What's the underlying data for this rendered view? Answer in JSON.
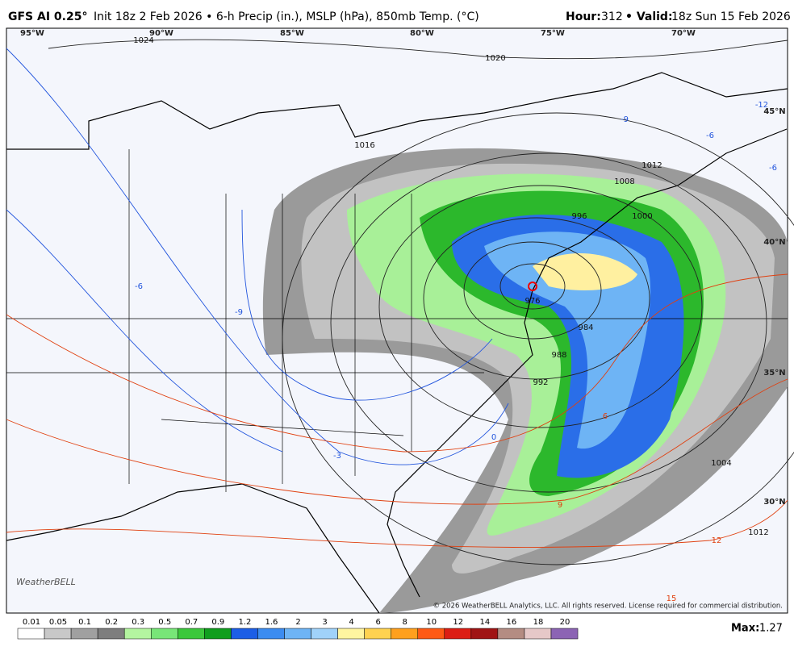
{
  "header": {
    "model": "GFS AI 0.25°",
    "description": "Init 18z 2 Feb 2026 • 6-h Precip (in.), MSLP (hPa), 850mb Temp. (°C)",
    "hour_label": "Hour:",
    "hour": "312",
    "valid_label": "• Valid:",
    "valid": "18z Sun 15 Feb 2026"
  },
  "map": {
    "longitudes": [
      "95°W",
      "90°W",
      "85°W",
      "80°W",
      "75°W",
      "70°W"
    ],
    "latitudes": [
      "45°N",
      "40°N",
      "35°N",
      "30°N"
    ],
    "isobar_labels": [
      "1024",
      "1020",
      "1016",
      "1012",
      "1008",
      "1000",
      "996",
      "976",
      "984",
      "988",
      "992",
      "1004",
      "1012"
    ],
    "temperature_labels": [
      "-12",
      "-9",
      "-6",
      "-6",
      "-9",
      "-6",
      "-3",
      "0",
      "6",
      "9",
      "12",
      "15"
    ],
    "logo": "WeatherBELL",
    "copyright": "© 2026 WeatherBELL Analytics, LLC. All rights reserved. License required for commercial distribution."
  },
  "legend": {
    "items": [
      {
        "label": "0.01",
        "color": "#ffffff"
      },
      {
        "label": "0.05",
        "color": "#c8c8c8"
      },
      {
        "label": "0.1",
        "color": "#a0a0a0"
      },
      {
        "label": "0.2",
        "color": "#7e7e7e"
      },
      {
        "label": "0.3",
        "color": "#b4f5a0"
      },
      {
        "label": "0.5",
        "color": "#78e678"
      },
      {
        "label": "0.7",
        "color": "#3cc83c"
      },
      {
        "label": "0.9",
        "color": "#109e1e"
      },
      {
        "label": "1.2",
        "color": "#1c5ee6"
      },
      {
        "label": "1.6",
        "color": "#3c8cf0"
      },
      {
        "label": "2",
        "color": "#6eb4f5"
      },
      {
        "label": "3",
        "color": "#a0d2fa"
      },
      {
        "label": "4",
        "color": "#fff5a0"
      },
      {
        "label": "6",
        "color": "#ffd250"
      },
      {
        "label": "8",
        "color": "#ffa01e"
      },
      {
        "label": "10",
        "color": "#ff5a14"
      },
      {
        "label": "12",
        "color": "#dc1e14"
      },
      {
        "label": "14",
        "color": "#a01414"
      },
      {
        "label": "16",
        "color": "#b48c82"
      },
      {
        "label": "18",
        "color": "#e6c8c8"
      },
      {
        "label": "20",
        "color": "#8c64b4"
      }
    ],
    "max_label": "Max:",
    "max": "1.27"
  }
}
